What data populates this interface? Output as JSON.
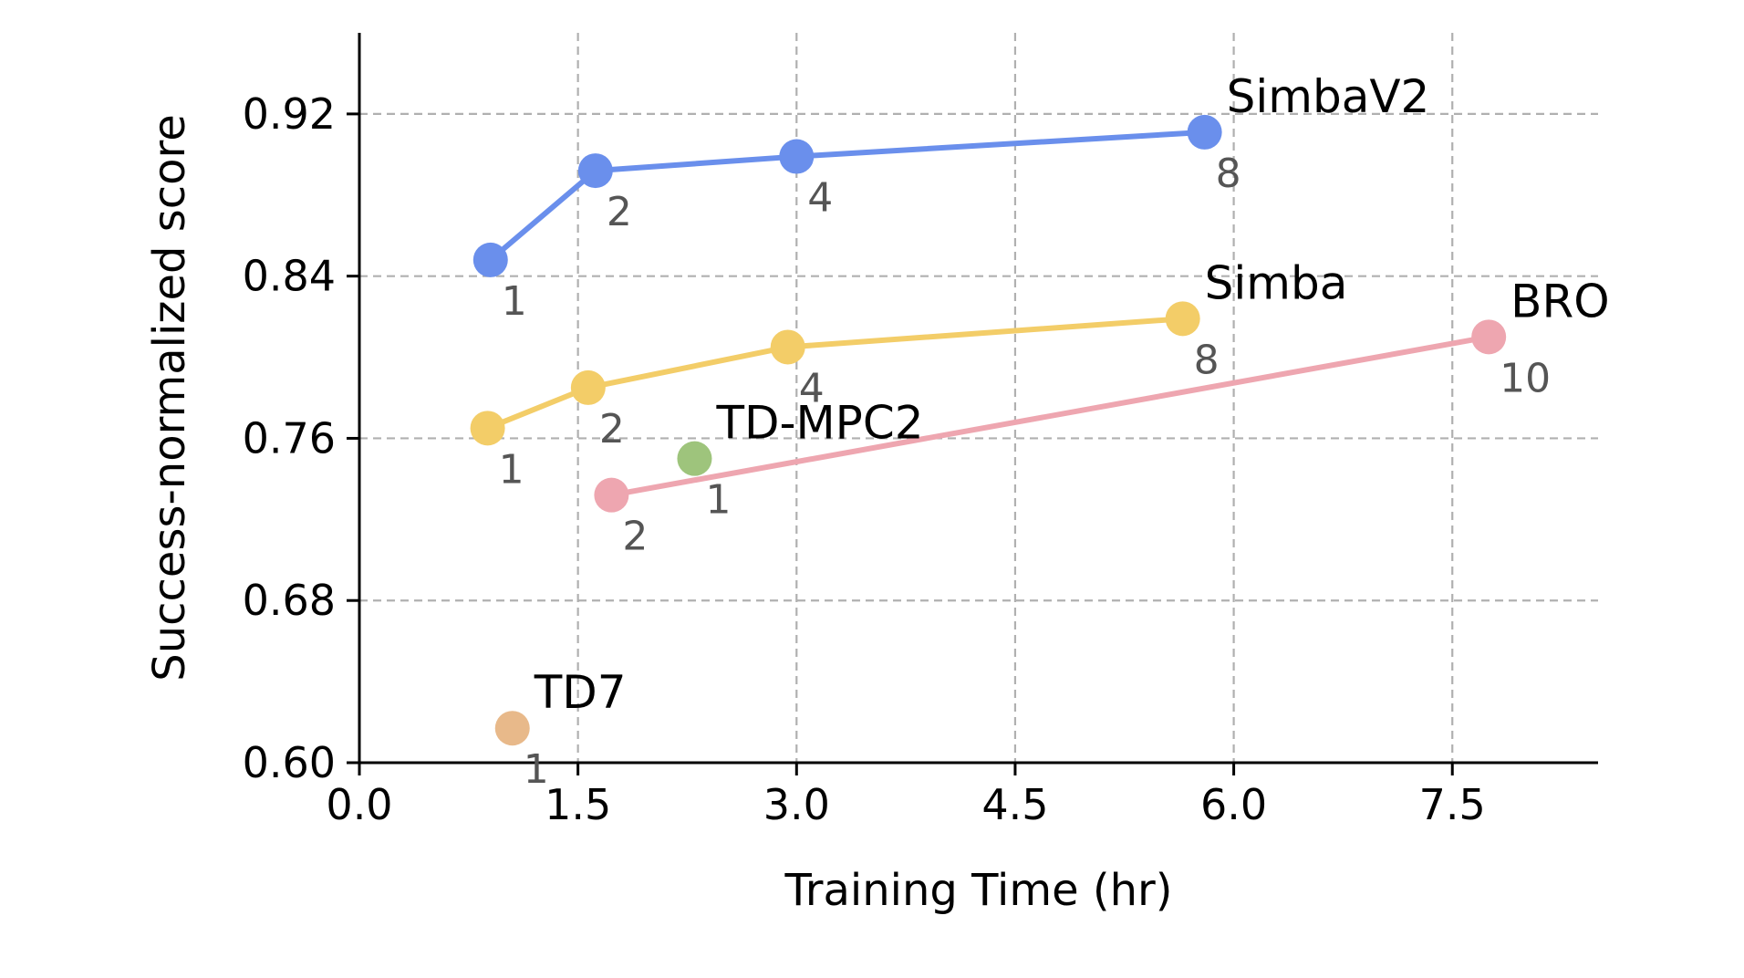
{
  "chart_data": {
    "type": "line",
    "xlabel": "Training Time (hr)",
    "ylabel": "Success-normalized score",
    "xlim": [
      0,
      8.5
    ],
    "ylim": [
      0.6,
      0.96
    ],
    "x_ticks": [
      "0.0",
      "1.5",
      "3.0",
      "4.5",
      "6.0",
      "7.5"
    ],
    "y_ticks": [
      "0.60",
      "0.68",
      "0.76",
      "0.84",
      "0.92"
    ],
    "grid": true,
    "series": [
      {
        "name": "SimbaV2",
        "color": "#6a8fec",
        "x": [
          0.9,
          1.62,
          3.0,
          5.8
        ],
        "y": [
          0.848,
          0.892,
          0.899,
          0.911
        ],
        "point_labels": [
          "1",
          "2",
          "4",
          "8"
        ]
      },
      {
        "name": "Simba",
        "color": "#f3cd68",
        "x": [
          0.88,
          1.57,
          2.94,
          5.65
        ],
        "y": [
          0.765,
          0.785,
          0.805,
          0.819
        ],
        "point_labels": [
          "1",
          "2",
          "4",
          "8"
        ]
      },
      {
        "name": "BRO",
        "color": "#eea6b0",
        "x": [
          1.73,
          7.75
        ],
        "y": [
          0.732,
          0.81
        ],
        "point_labels": [
          "2",
          "10"
        ]
      },
      {
        "name": "TD-MPC2",
        "color": "#9ec47c",
        "x": [
          2.3
        ],
        "y": [
          0.75
        ],
        "point_labels": [
          "1"
        ]
      },
      {
        "name": "TD7",
        "color": "#e8b98a",
        "x": [
          1.05
        ],
        "y": [
          0.617
        ],
        "point_labels": [
          "1"
        ]
      }
    ]
  }
}
